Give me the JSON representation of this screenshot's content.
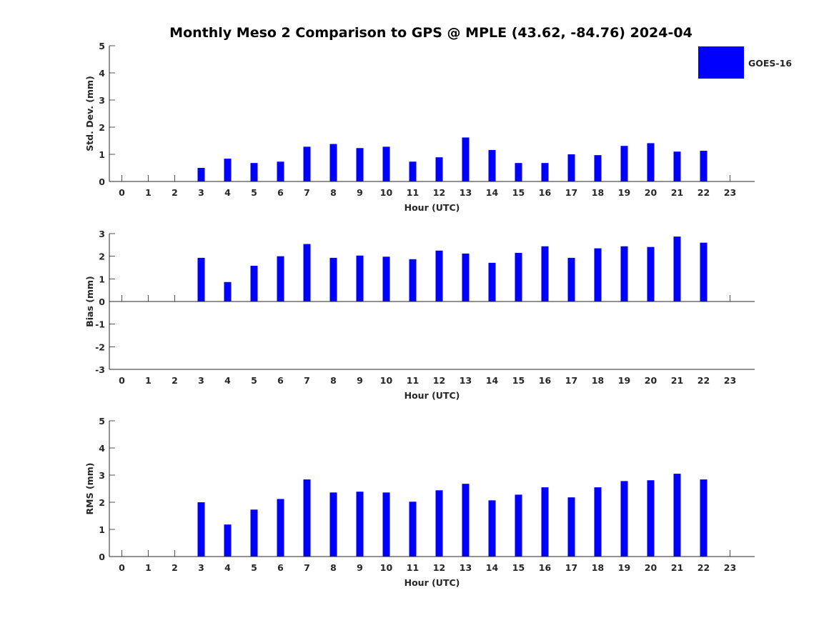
{
  "chart_data": {
    "title": "Monthly Meso 2 Comparison to GPS @ MPLE (43.62, -84.76) 2024-04",
    "legend": {
      "placement": "top-right",
      "entries": [
        "GOES-16"
      ]
    },
    "colors": {
      "bar": "#0000ff",
      "axis": "#262626"
    },
    "grid": false,
    "panels": [
      {
        "type": "bar",
        "ylabel": "Std. Dev. (mm)",
        "xlabel": "Hour (UTC)",
        "ylim": [
          0,
          5
        ],
        "yticks": [
          "0",
          "1",
          "2",
          "3",
          "4",
          "5"
        ],
        "categories": [
          "0",
          "1",
          "2",
          "3",
          "4",
          "5",
          "6",
          "7",
          "8",
          "9",
          "10",
          "11",
          "12",
          "13",
          "14",
          "15",
          "16",
          "17",
          "18",
          "19",
          "20",
          "21",
          "22",
          "23"
        ],
        "series": [
          {
            "name": "GOES-16",
            "values": [
              null,
              null,
              null,
              0.5,
              0.84,
              0.68,
              0.73,
              1.28,
              1.38,
              1.23,
              1.28,
              0.73,
              0.89,
              1.62,
              1.16,
              0.68,
              0.68,
              1.0,
              0.97,
              1.31,
              1.41,
              1.1,
              1.13,
              null
            ]
          }
        ]
      },
      {
        "type": "bar",
        "ylabel": "Bias (mm)",
        "xlabel": "Hour (UTC)",
        "ylim": [
          -3,
          3
        ],
        "yticks": [
          "-3",
          "-2",
          "-1",
          "0",
          "1",
          "2",
          "3"
        ],
        "zero_line": true,
        "categories": [
          "0",
          "1",
          "2",
          "3",
          "4",
          "5",
          "6",
          "7",
          "8",
          "9",
          "10",
          "11",
          "12",
          "13",
          "14",
          "15",
          "16",
          "17",
          "18",
          "19",
          "20",
          "21",
          "22",
          "23"
        ],
        "series": [
          {
            "name": "GOES-16",
            "values": [
              null,
              null,
              null,
              1.93,
              0.86,
              1.58,
              2.0,
              2.54,
              1.93,
              2.03,
              1.98,
              1.87,
              2.25,
              2.12,
              1.71,
              2.15,
              2.44,
              1.93,
              2.35,
              2.44,
              2.41,
              2.87,
              2.6,
              null
            ]
          }
        ]
      },
      {
        "type": "bar",
        "ylabel": "RMS (mm)",
        "xlabel": "Hour (UTC)",
        "ylim": [
          0,
          5
        ],
        "yticks": [
          "0",
          "1",
          "2",
          "3",
          "4",
          "5"
        ],
        "categories": [
          "0",
          "1",
          "2",
          "3",
          "4",
          "5",
          "6",
          "7",
          "8",
          "9",
          "10",
          "11",
          "12",
          "13",
          "14",
          "15",
          "16",
          "17",
          "18",
          "19",
          "20",
          "21",
          "22",
          "23"
        ],
        "series": [
          {
            "name": "GOES-16",
            "values": [
              null,
              null,
              null,
              2.0,
              1.18,
              1.73,
              2.12,
              2.84,
              2.36,
              2.39,
              2.36,
              2.02,
              2.44,
              2.68,
              2.07,
              2.28,
              2.55,
              2.18,
              2.55,
              2.78,
              2.81,
              3.05,
              2.84,
              null
            ]
          }
        ]
      }
    ]
  }
}
